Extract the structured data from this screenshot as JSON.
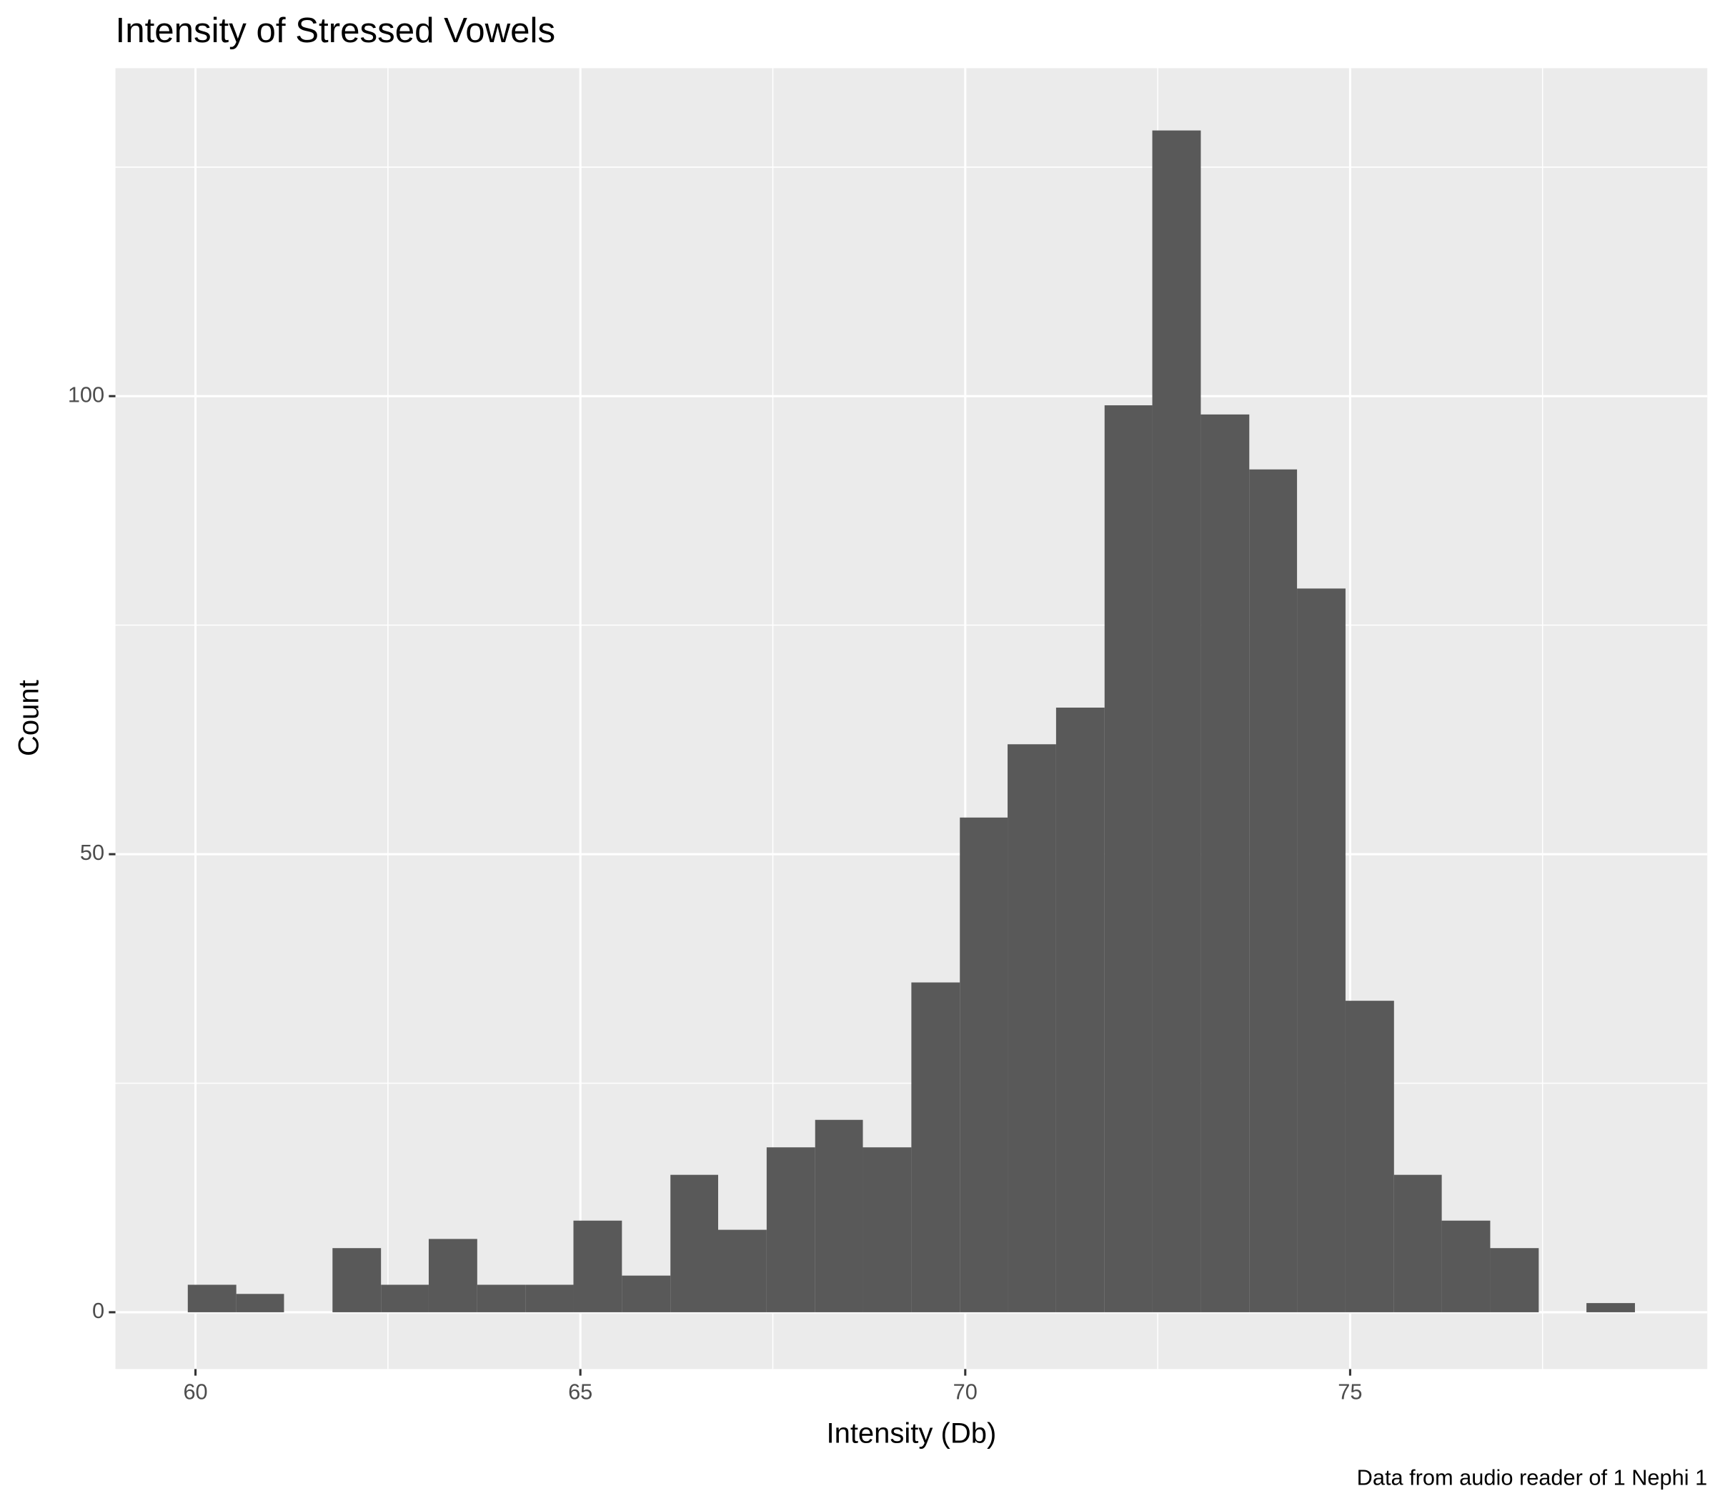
{
  "chart_data": {
    "type": "histogram",
    "title": "Intensity of Stressed Vowels",
    "x_label": "Intensity (Db)",
    "y_label": "Count",
    "caption": "Data from audio reader of 1 Nephi 1",
    "bins": [
      59.9,
      60.53,
      61.15,
      61.78,
      62.41,
      63.03,
      63.66,
      64.29,
      64.91,
      65.54,
      66.17,
      66.79,
      67.42,
      68.05,
      68.67,
      69.3,
      69.93,
      70.55,
      71.18,
      71.81,
      72.43,
      73.06,
      73.69,
      74.31,
      74.94,
      75.57,
      76.19,
      76.82,
      77.45,
      78.07,
      78.7
    ],
    "values": [
      3,
      2,
      0,
      7,
      3,
      8,
      3,
      3,
      10,
      4,
      15,
      9,
      18,
      21,
      18,
      36,
      54,
      62,
      66,
      99,
      129,
      98,
      92,
      79,
      34,
      15,
      10,
      7,
      0,
      1
    ],
    "color": "#595959",
    "xlim": [
      58.96,
      79.64
    ],
    "xticks": [
      60,
      65,
      70,
      75
    ],
    "x_minor_ticks": [
      62.5,
      67.5,
      72.5,
      77.5
    ],
    "ylim": [
      -6.2,
      135.8
    ],
    "yticks": [
      0,
      50,
      100
    ],
    "y_minor_ticks": [
      25,
      75,
      125
    ],
    "grid": true
  }
}
